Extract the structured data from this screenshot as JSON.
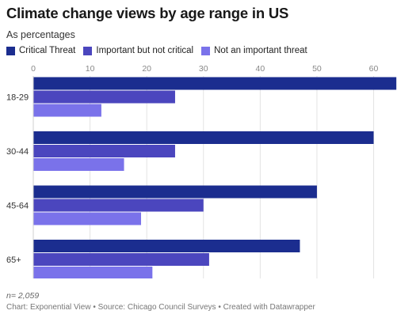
{
  "header": {
    "title": "Climate change views by age range in US",
    "subtitle": "As percentages"
  },
  "legend": [
    {
      "label": "Critical Threat",
      "color": "#1b2d8f"
    },
    {
      "label": "Important but not critical",
      "color": "#4b46be"
    },
    {
      "label": "Not an important threat",
      "color": "#7a72ea"
    }
  ],
  "chart_data": {
    "type": "bar",
    "orientation": "horizontal",
    "categories": [
      "18-29",
      "30-44",
      "45-64",
      "65+"
    ],
    "series": [
      {
        "name": "Critical Threat",
        "values": [
          64,
          60,
          50,
          47
        ],
        "color": "#1b2d8f"
      },
      {
        "name": "Important but not critical",
        "values": [
          25,
          25,
          30,
          31
        ],
        "color": "#4b46be"
      },
      {
        "name": "Not an important threat",
        "values": [
          12,
          16,
          19,
          21
        ],
        "color": "#7a72ea"
      }
    ],
    "xticks": [
      0,
      10,
      20,
      30,
      40,
      50,
      60
    ],
    "xlim": [
      0,
      63
    ],
    "grid": true,
    "legend_position": "top-left"
  },
  "footer": {
    "note": "n= 2,059",
    "source": "Chart: Exponential View • Source: Chicago Council Surveys • Created with Datawrapper"
  }
}
